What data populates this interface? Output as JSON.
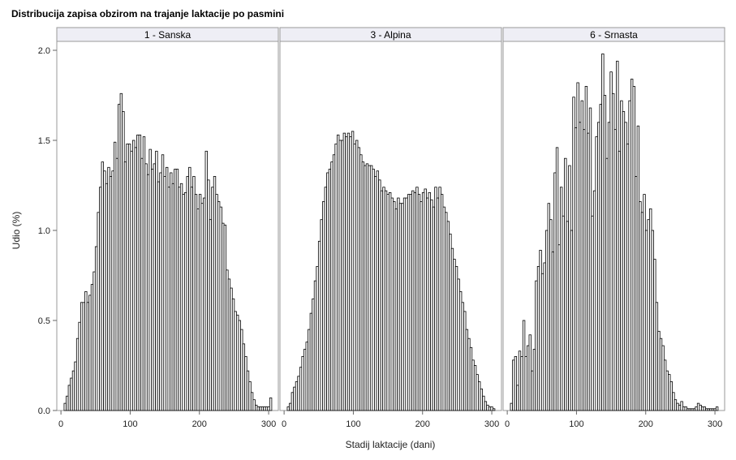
{
  "chart_data": {
    "type": "bar",
    "title": "Distribucija zapisa obzirom na trajanje laktacije po pasmini",
    "xlabel": "Stadij laktacije (dani)",
    "ylabel": "Udio (%)",
    "xlim": [
      -6,
      314
    ],
    "ylim": [
      0,
      2.0
    ],
    "xticks": [
      0,
      100,
      200,
      300
    ],
    "yticks": [
      0.0,
      0.5,
      1.0,
      1.5,
      2.0
    ],
    "ytick_labels": [
      "0.0",
      "0.5",
      "1.0",
      "1.5",
      "2.0"
    ],
    "bin_width": 3,
    "bar_fill": "#ffffff",
    "bar_stroke": "#000000",
    "panel_header_fill": "#eeeef5",
    "frame_color": "#999999",
    "grid": false,
    "panels": [
      {
        "label": "1 - Sanska",
        "x": [
          6,
          9,
          12,
          15,
          18,
          21,
          24,
          27,
          30,
          33,
          36,
          39,
          42,
          45,
          48,
          51,
          54,
          57,
          60,
          63,
          66,
          69,
          72,
          75,
          78,
          81,
          84,
          87,
          90,
          93,
          96,
          99,
          102,
          105,
          108,
          111,
          114,
          117,
          120,
          123,
          126,
          129,
          132,
          135,
          138,
          141,
          144,
          147,
          150,
          153,
          156,
          159,
          162,
          165,
          168,
          171,
          174,
          177,
          180,
          183,
          186,
          189,
          192,
          195,
          198,
          201,
          204,
          207,
          210,
          213,
          216,
          219,
          222,
          225,
          228,
          231,
          234,
          237,
          240,
          243,
          246,
          249,
          252,
          255,
          258,
          261,
          264,
          267,
          270,
          273,
          276,
          279,
          282,
          285,
          288,
          291,
          294,
          297,
          300,
          303
        ],
        "values": [
          0.04,
          0.08,
          0.14,
          0.18,
          0.22,
          0.27,
          0.4,
          0.49,
          0.6,
          0.6,
          0.66,
          0.6,
          0.64,
          0.7,
          0.77,
          0.91,
          1.1,
          1.24,
          1.38,
          1.33,
          1.26,
          1.35,
          1.3,
          1.33,
          1.49,
          1.4,
          1.7,
          1.76,
          1.66,
          1.38,
          1.48,
          1.48,
          1.44,
          1.5,
          1.46,
          1.53,
          1.53,
          1.4,
          1.52,
          1.37,
          1.31,
          1.45,
          1.34,
          1.37,
          1.44,
          1.27,
          1.32,
          1.42,
          1.3,
          1.35,
          1.24,
          1.32,
          1.26,
          1.34,
          1.34,
          1.24,
          1.26,
          1.2,
          1.21,
          1.3,
          1.35,
          1.24,
          1.3,
          1.2,
          1.12,
          1.2,
          1.15,
          1.18,
          1.44,
          1.28,
          1.06,
          1.24,
          1.3,
          1.2,
          1.16,
          1.13,
          1.04,
          1.03,
          0.78,
          0.73,
          0.68,
          0.62,
          0.55,
          0.53,
          0.5,
          0.45,
          0.37,
          0.3,
          0.22,
          0.16,
          0.1,
          0.06,
          0.03,
          0.02,
          0.02,
          0.02,
          0.02,
          0.02,
          0.02,
          0.07
        ]
      },
      {
        "label": "3 - Alpina",
        "x": [
          6,
          9,
          12,
          15,
          18,
          21,
          24,
          27,
          30,
          33,
          36,
          39,
          42,
          45,
          48,
          51,
          54,
          57,
          60,
          63,
          66,
          69,
          72,
          75,
          78,
          81,
          84,
          87,
          90,
          93,
          96,
          99,
          102,
          105,
          108,
          111,
          114,
          117,
          120,
          123,
          126,
          129,
          132,
          135,
          138,
          141,
          144,
          147,
          150,
          153,
          156,
          159,
          162,
          165,
          168,
          171,
          174,
          177,
          180,
          183,
          186,
          189,
          192,
          195,
          198,
          201,
          204,
          207,
          210,
          213,
          216,
          219,
          222,
          225,
          228,
          231,
          234,
          237,
          240,
          243,
          246,
          249,
          252,
          255,
          258,
          261,
          264,
          267,
          270,
          273,
          276,
          279,
          282,
          285,
          288,
          291,
          294,
          297,
          300,
          303
        ],
        "values": [
          0.02,
          0.04,
          0.1,
          0.13,
          0.16,
          0.19,
          0.24,
          0.3,
          0.34,
          0.38,
          0.45,
          0.54,
          0.62,
          0.72,
          0.8,
          0.94,
          1.06,
          1.16,
          1.24,
          1.32,
          1.34,
          1.38,
          1.42,
          1.48,
          1.53,
          1.5,
          1.5,
          1.54,
          1.52,
          1.54,
          1.52,
          1.55,
          1.48,
          1.5,
          1.46,
          1.42,
          1.38,
          1.36,
          1.37,
          1.36,
          1.36,
          1.34,
          1.3,
          1.33,
          1.28,
          1.22,
          1.24,
          1.22,
          1.2,
          1.21,
          1.18,
          1.16,
          1.12,
          1.18,
          1.15,
          1.15,
          1.18,
          1.18,
          1.2,
          1.2,
          1.22,
          1.21,
          1.24,
          1.2,
          1.16,
          1.21,
          1.23,
          1.18,
          1.21,
          1.17,
          1.13,
          1.24,
          1.18,
          1.24,
          1.2,
          1.13,
          1.1,
          1.05,
          0.98,
          0.9,
          0.84,
          0.8,
          0.73,
          0.66,
          0.6,
          0.55,
          0.45,
          0.4,
          0.35,
          0.28,
          0.25,
          0.2,
          0.16,
          0.12,
          0.08,
          0.05,
          0.03,
          0.02,
          0.02,
          0.01
        ]
      },
      {
        "label": "6 - Srnasta",
        "x": [
          6,
          9,
          12,
          15,
          18,
          21,
          24,
          27,
          30,
          33,
          36,
          39,
          42,
          45,
          48,
          51,
          54,
          57,
          60,
          63,
          66,
          69,
          72,
          75,
          78,
          81,
          84,
          87,
          90,
          93,
          96,
          99,
          102,
          105,
          108,
          111,
          114,
          117,
          120,
          123,
          126,
          129,
          132,
          135,
          138,
          141,
          144,
          147,
          150,
          153,
          156,
          159,
          162,
          165,
          168,
          171,
          174,
          177,
          180,
          183,
          186,
          189,
          192,
          195,
          198,
          201,
          204,
          207,
          210,
          213,
          216,
          219,
          222,
          225,
          228,
          231,
          234,
          237,
          240,
          243,
          246,
          249,
          252,
          255,
          258,
          261,
          264,
          267,
          270,
          273,
          276,
          279,
          282,
          285,
          288,
          291,
          294,
          297,
          300,
          303
        ],
        "values": [
          0.04,
          0.28,
          0.3,
          0.14,
          0.33,
          0.3,
          0.5,
          0.3,
          0.36,
          0.42,
          0.22,
          0.34,
          0.72,
          0.8,
          0.89,
          0.76,
          0.82,
          1.0,
          1.15,
          1.06,
          0.88,
          1.32,
          1.46,
          0.92,
          1.24,
          1.08,
          1.4,
          1.05,
          1.36,
          1.0,
          1.74,
          1.57,
          1.82,
          1.6,
          1.72,
          1.56,
          1.8,
          1.54,
          1.68,
          1.08,
          1.22,
          1.52,
          1.6,
          1.7,
          1.98,
          1.75,
          1.4,
          1.6,
          1.88,
          1.76,
          1.56,
          1.94,
          1.44,
          1.72,
          1.66,
          1.6,
          1.48,
          1.72,
          1.84,
          1.8,
          1.3,
          1.58,
          1.16,
          1.1,
          1.2,
          1.0,
          1.06,
          1.12,
          1.0,
          0.84,
          0.6,
          0.44,
          0.4,
          0.36,
          0.28,
          0.22,
          0.2,
          0.16,
          0.1,
          0.06,
          0.04,
          0.03,
          0.05,
          0.02,
          0.02,
          0.01,
          0.01,
          0.01,
          0.01,
          0.02,
          0.04,
          0.03,
          0.02,
          0.02,
          0.01,
          0.01,
          0.01,
          0.01,
          0.01,
          0.02
        ]
      }
    ]
  }
}
